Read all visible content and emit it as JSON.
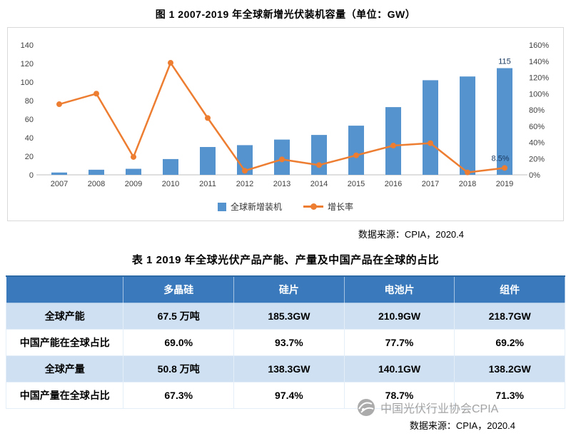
{
  "figure": {
    "title": "图 1 2007-2019 年全球新增光伏装机容量（单位：GW）",
    "source": "数据来源：CPIA，2020.4"
  },
  "chart_data": {
    "type": "bar+line combo",
    "categories": [
      "2007",
      "2008",
      "2009",
      "2010",
      "2011",
      "2012",
      "2013",
      "2014",
      "2015",
      "2016",
      "2017",
      "2018",
      "2019"
    ],
    "series": [
      {
        "name": "全球新增装机",
        "type": "bar",
        "color": "#5593ce",
        "values": [
          2.5,
          5.5,
          6.5,
          17,
          30,
          32,
          38,
          43,
          53,
          73,
          102,
          106,
          115
        ]
      },
      {
        "name": "增长率",
        "type": "line",
        "color": "#ed7d31",
        "unit": "%",
        "values": [
          87,
          100,
          22,
          138,
          70,
          5,
          19,
          12,
          24,
          36,
          39,
          3,
          8.5
        ]
      }
    ],
    "left_axis": {
      "min": 0,
      "max": 140,
      "step": 20
    },
    "right_axis": {
      "min": 0,
      "max": 160,
      "step": 20,
      "format": "percent"
    },
    "annotations": [
      {
        "series": 0,
        "index": 12,
        "text": "115"
      },
      {
        "series": 1,
        "index": 12,
        "text": "8.5%"
      }
    ],
    "legend_position": "bottom",
    "grid": false
  },
  "table": {
    "title": "表 1 2019 年全球光伏产品产能、产量及中国产品在全球的占比",
    "headers": [
      "",
      "多晶硅",
      "硅片",
      "电池片",
      "组件"
    ],
    "rows": [
      {
        "label": "全球产能",
        "values": [
          "67.5 万吨",
          "185.3GW",
          "210.9GW",
          "218.7GW"
        ]
      },
      {
        "label": "中国产能在全球占比",
        "values": [
          "69.0%",
          "93.7%",
          "77.7%",
          "69.2%"
        ]
      },
      {
        "label": "全球产量",
        "values": [
          "50.8 万吨",
          "138.3GW",
          "140.1GW",
          "138.2GW"
        ]
      },
      {
        "label": "中国产量在全球占比",
        "values": [
          "67.3%",
          "97.4%",
          "78.7%",
          "71.3%"
        ]
      }
    ],
    "source": "数据来源：CPIA，2020.4"
  },
  "watermark": {
    "text": "中国光伏行业协会CPIA"
  },
  "colors": {
    "bar": "#5593ce",
    "line": "#ed7d31",
    "table_header_bg": "#3a7abc",
    "table_row_alt_bg": "#cfe0f2",
    "annotation_text": "#17375e"
  }
}
